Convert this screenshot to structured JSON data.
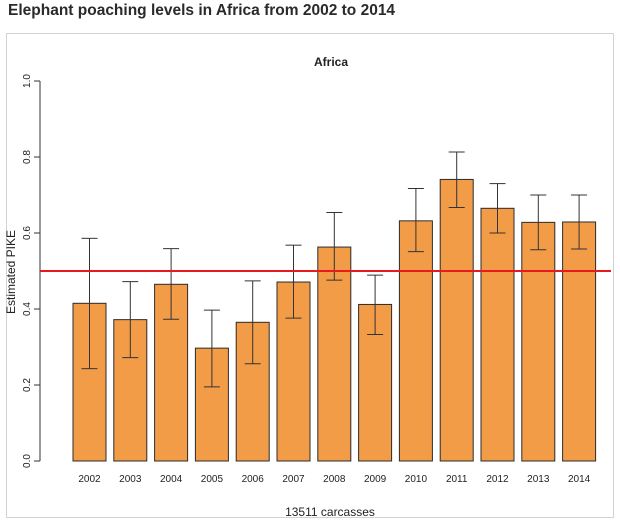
{
  "page_title": "Elephant poaching levels in Africa from 2002 to 2014",
  "chart_data": {
    "type": "bar",
    "title": "Africa",
    "xlabel": "13511 carcasses",
    "ylabel": "Estimated PIKE",
    "ylim": [
      0,
      1.0
    ],
    "yticks": [
      "0.0",
      "0.2",
      "0.4",
      "0.6",
      "0.8",
      "1.0"
    ],
    "categories": [
      "2002",
      "2003",
      "2004",
      "2005",
      "2006",
      "2007",
      "2008",
      "2009",
      "2010",
      "2011",
      "2012",
      "2013",
      "2014"
    ],
    "values": [
      0.415,
      0.372,
      0.465,
      0.297,
      0.365,
      0.471,
      0.563,
      0.412,
      0.632,
      0.741,
      0.665,
      0.628,
      0.629
    ],
    "error_low": [
      0.243,
      0.272,
      0.373,
      0.195,
      0.256,
      0.376,
      0.476,
      0.333,
      0.551,
      0.667,
      0.6,
      0.556,
      0.558
    ],
    "error_high": [
      0.586,
      0.472,
      0.559,
      0.397,
      0.474,
      0.568,
      0.654,
      0.489,
      0.717,
      0.813,
      0.73,
      0.7,
      0.7
    ],
    "reference_line": 0.5,
    "bar_color": "#F39C48",
    "reference_color": "#E8191F",
    "grid": false,
    "legend": "none"
  }
}
